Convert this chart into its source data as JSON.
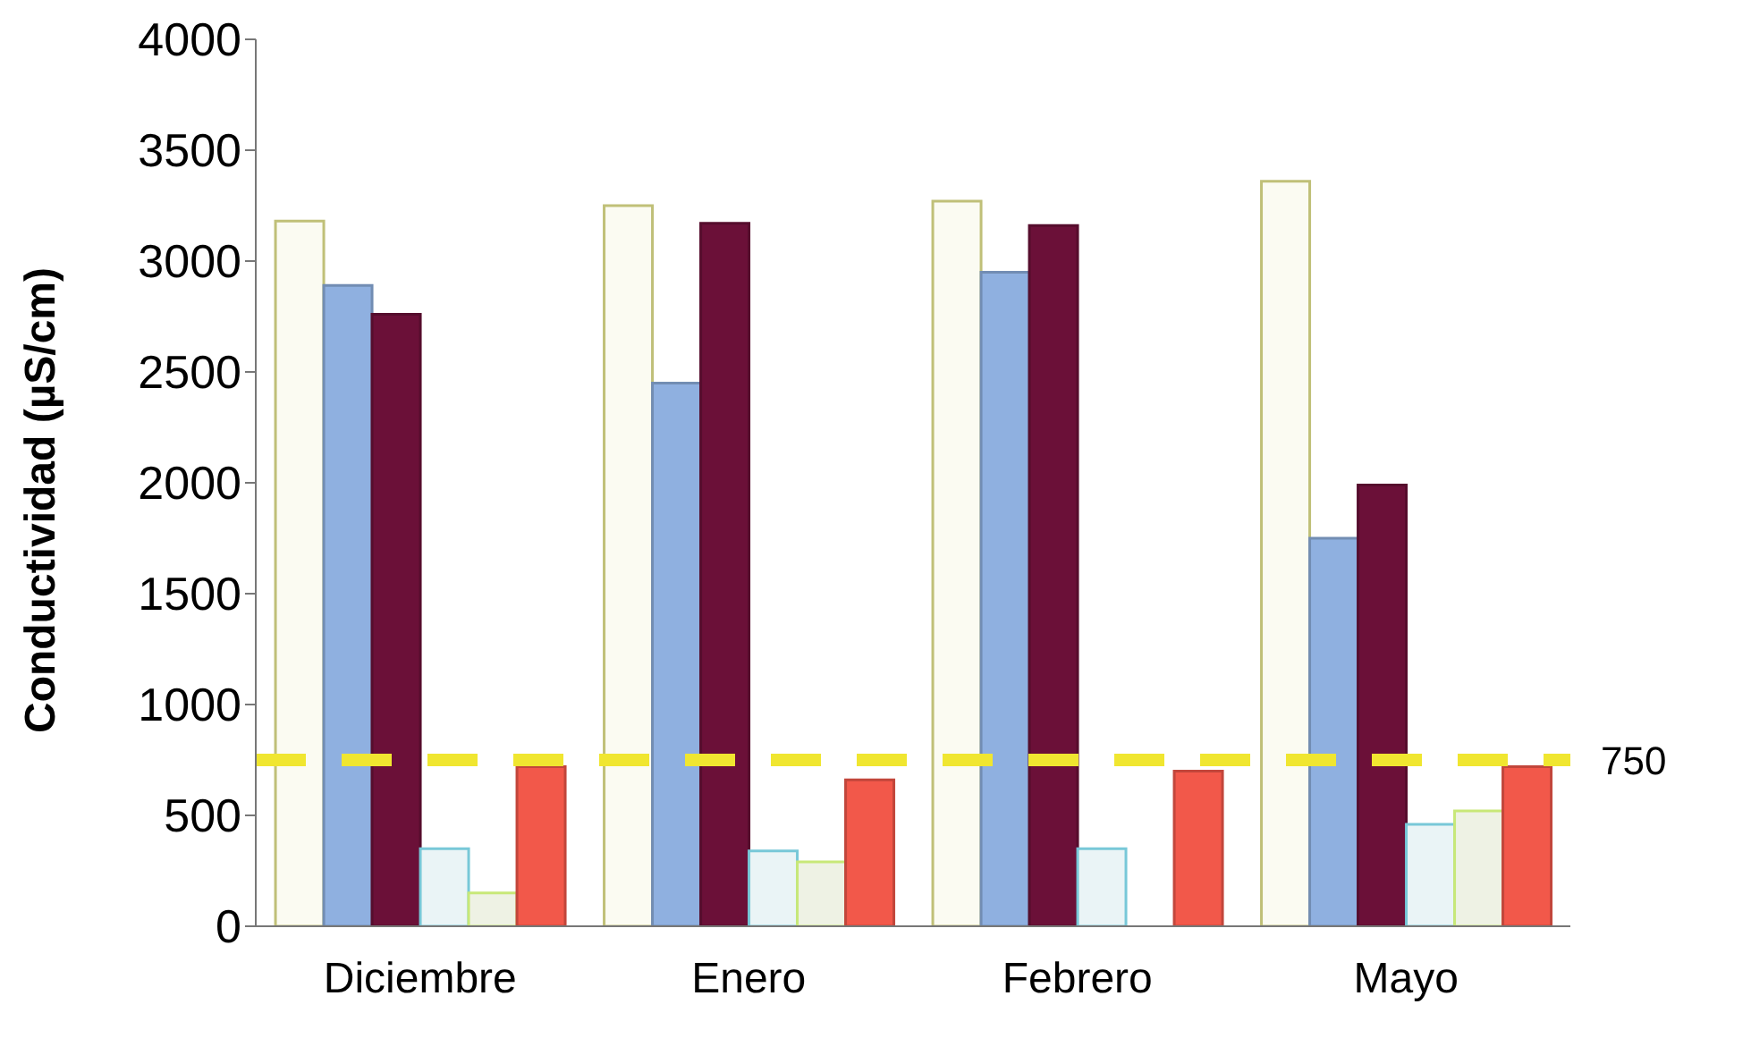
{
  "chart_data": {
    "type": "bar",
    "ylabel": "Conductividad (µS/cm)",
    "categories": [
      "Diciembre",
      "Enero",
      "Febrero",
      "Mayo"
    ],
    "series": [
      {
        "color": "#fbfbf2",
        "values": [
          3180,
          3250,
          3270,
          3360
        ]
      },
      {
        "color": "#8fb0e0",
        "values": [
          2890,
          2450,
          2950,
          1750
        ]
      },
      {
        "color": "#6b1038",
        "values": [
          2760,
          3170,
          3160,
          1990
        ]
      },
      {
        "color": "#eaf4f6",
        "values": [
          350,
          340,
          350,
          460
        ]
      },
      {
        "color": "#eef2e4",
        "values": [
          150,
          290,
          null,
          520
        ]
      },
      {
        "color": "#f2584a",
        "values": [
          720,
          660,
          700,
          720
        ]
      }
    ],
    "ylim": [
      0,
      4000
    ],
    "yticks": [
      0,
      500,
      1000,
      1500,
      2000,
      2500,
      3000,
      3500,
      4000
    ],
    "ref_lines": [
      {
        "axis": "y",
        "value": 750,
        "label": "750",
        "color": "#f0e630",
        "line_style": "dashed"
      }
    ],
    "grid": false,
    "legend": false
  }
}
